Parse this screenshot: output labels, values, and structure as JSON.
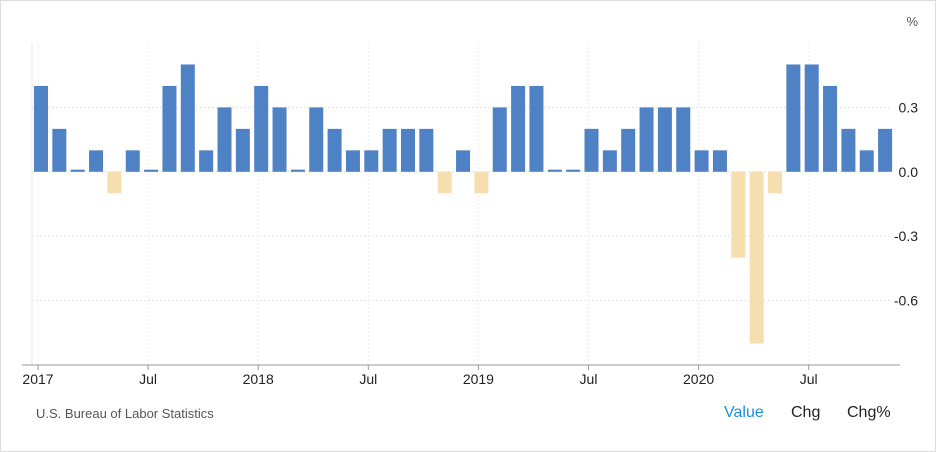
{
  "chart_data": {
    "type": "bar",
    "unit": "%",
    "source": "U.S. Bureau of Labor Statistics",
    "buttons": [
      "Value",
      "Chg",
      "Chg%"
    ],
    "categories": [
      "2017",
      null,
      null,
      null,
      null,
      null,
      "Jul",
      null,
      null,
      null,
      null,
      null,
      "2018",
      null,
      null,
      null,
      null,
      null,
      "Jul",
      null,
      null,
      null,
      null,
      null,
      "2019",
      null,
      null,
      null,
      null,
      null,
      "Jul",
      null,
      null,
      null,
      null,
      null,
      "2020",
      null,
      null,
      null,
      null,
      null,
      "Jul",
      null,
      null,
      null,
      null
    ],
    "values": [
      0.4,
      0.2,
      0.01,
      0.1,
      -0.1,
      0.1,
      0.01,
      0.4,
      0.5,
      0.1,
      0.3,
      0.2,
      0.4,
      0.3,
      0.01,
      0.3,
      0.2,
      0.1,
      0.1,
      0.2,
      0.2,
      0.2,
      -0.1,
      0.1,
      -0.1,
      0.3,
      0.4,
      0.4,
      0.01,
      0.01,
      0.2,
      0.1,
      0.2,
      0.3,
      0.3,
      0.3,
      0.1,
      0.1,
      -0.4,
      -0.8,
      -0.1,
      0.5,
      0.5,
      0.4,
      0.2,
      0.1,
      0.2
    ],
    "color": "#4f81c5",
    "negative_color": "#f6deb1",
    "ylim": [
      -0.9,
      0.6
    ],
    "yticks": [
      0.3,
      {
        "value": 0,
        "label": "0.0"
      },
      -0.3,
      -0.6
    ],
    "grid": true
  }
}
